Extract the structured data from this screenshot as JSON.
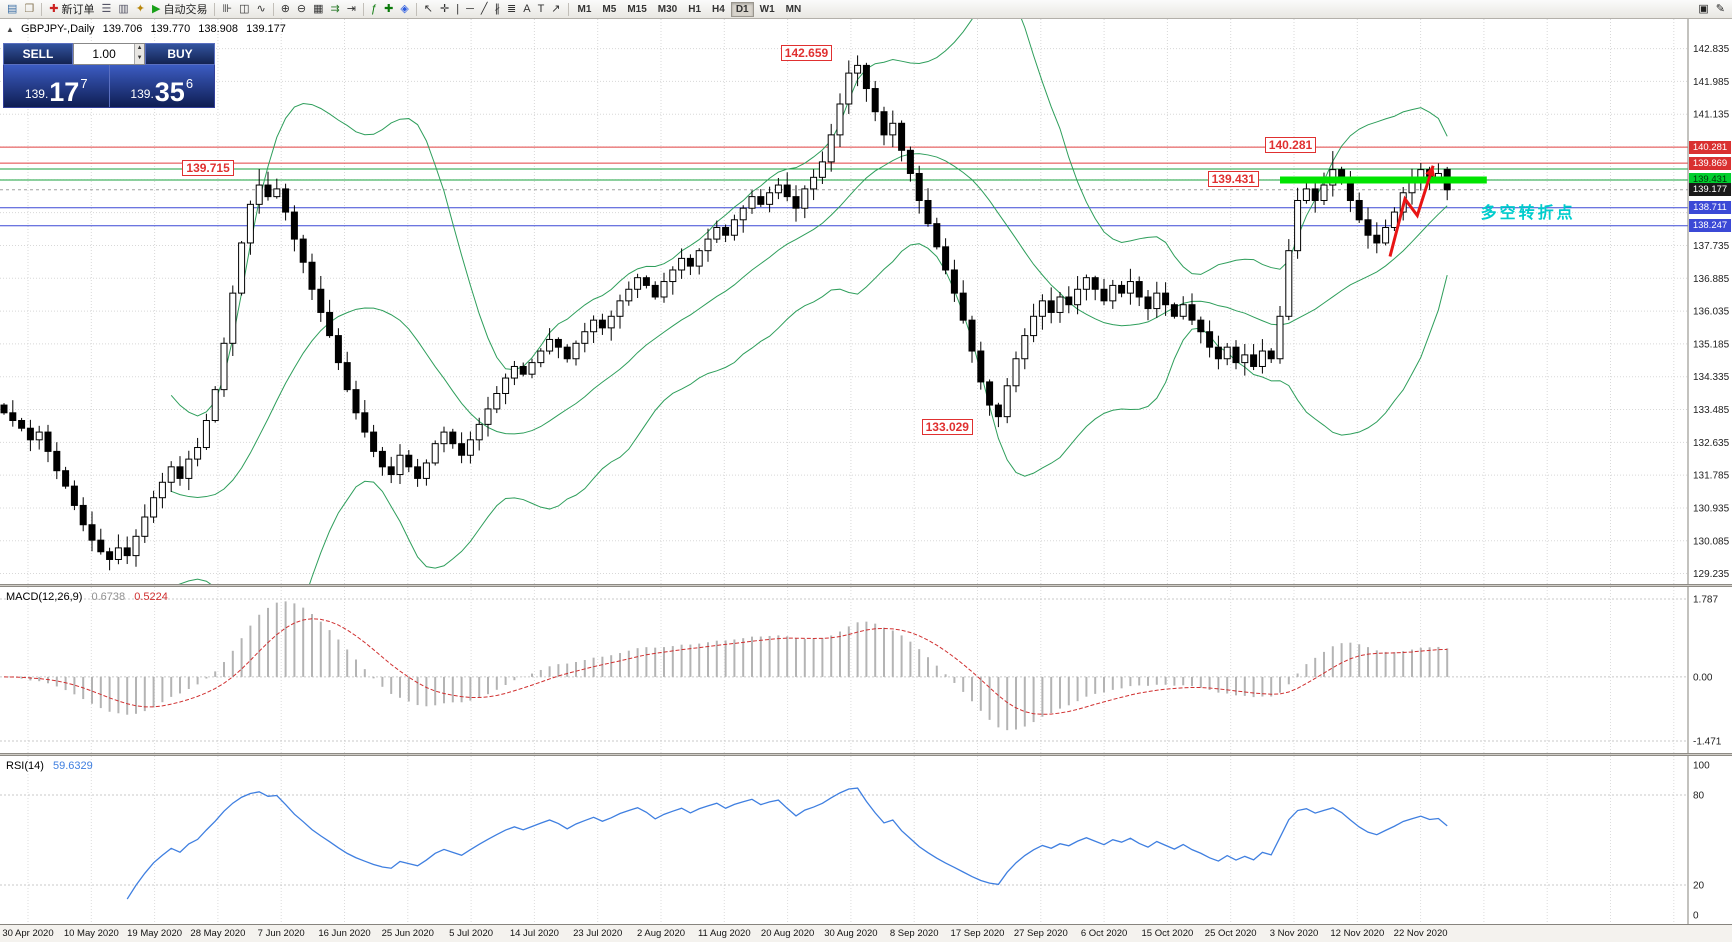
{
  "toolbar": {
    "items": [
      {
        "type": "icon",
        "name": "new-chart-icon",
        "glyph": "▤",
        "color": "#3a6ea5"
      },
      {
        "type": "icon",
        "name": "profiles-icon",
        "glyph": "❐",
        "color": "#8a7a5a"
      },
      {
        "type": "sep"
      },
      {
        "type": "button",
        "name": "new-order-button",
        "glyph": "✚",
        "color": "#cc2222",
        "label": "新订单"
      },
      {
        "type": "icon",
        "name": "market-watch-icon",
        "glyph": "☰",
        "color": "#556"
      },
      {
        "type": "icon",
        "name": "data-window-icon",
        "glyph": "▥",
        "color": "#556"
      },
      {
        "type": "icon",
        "name": "navigator-icon",
        "glyph": "✦",
        "color": "#b8860b"
      },
      {
        "type": "button",
        "name": "autotrading-button",
        "glyph": "▶",
        "color": "#18a018",
        "label": "自动交易"
      },
      {
        "type": "sep"
      },
      {
        "type": "icon",
        "name": "bar-chart-icon",
        "glyph": "⊪",
        "color": "#333"
      },
      {
        "type": "icon",
        "name": "candlestick-chart-icon",
        "glyph": "◫",
        "color": "#333"
      },
      {
        "type": "icon",
        "name": "line-chart-icon",
        "glyph": "∿",
        "color": "#333"
      },
      {
        "type": "sep"
      },
      {
        "type": "icon",
        "name": "zoom-in-icon",
        "glyph": "⊕",
        "color": "#333"
      },
      {
        "type": "icon",
        "name": "zoom-out-icon",
        "glyph": "⊖",
        "color": "#333"
      },
      {
        "type": "icon",
        "name": "tile-windows-icon",
        "glyph": "▦",
        "color": "#333"
      },
      {
        "type": "icon",
        "name": "auto-scroll-icon",
        "glyph": "⇉",
        "color": "#2a7a2a"
      },
      {
        "type": "icon",
        "name": "chart-shift-icon",
        "glyph": "⇥",
        "color": "#333"
      },
      {
        "type": "sep"
      },
      {
        "type": "icon",
        "name": "indicators-icon",
        "glyph": "ƒ",
        "color": "#0a7a0a"
      },
      {
        "type": "icon",
        "name": "add-indicator-icon",
        "glyph": "✚",
        "color": "#0a7a0a"
      },
      {
        "type": "icon",
        "name": "objects-list-icon",
        "glyph": "◈",
        "color": "#2a5adf"
      },
      {
        "type": "sep"
      },
      {
        "type": "icon",
        "name": "cursor-icon",
        "glyph": "↖",
        "color": "#333"
      },
      {
        "type": "icon",
        "name": "crosshair-icon",
        "glyph": "✛",
        "color": "#333"
      },
      {
        "type": "icon",
        "name": "vertical-line-icon",
        "glyph": "|",
        "color": "#333"
      },
      {
        "type": "icon",
        "name": "horizontal-line-icon",
        "glyph": "─",
        "color": "#333"
      },
      {
        "type": "icon",
        "name": "trendline-icon",
        "glyph": "╱",
        "color": "#333"
      },
      {
        "type": "icon",
        "name": "channel-icon",
        "glyph": "∦",
        "color": "#333"
      },
      {
        "type": "icon",
        "name": "fibonacci-icon",
        "glyph": "≣",
        "color": "#333"
      },
      {
        "type": "icon",
        "name": "text-icon",
        "glyph": "A",
        "color": "#333"
      },
      {
        "type": "icon",
        "name": "label-icon",
        "glyph": "T",
        "color": "#333"
      },
      {
        "type": "icon",
        "name": "arrows-icon",
        "glyph": "↗",
        "color": "#333"
      },
      {
        "type": "sep"
      }
    ],
    "timeframes": [
      "M1",
      "M5",
      "M15",
      "M30",
      "H1",
      "H4",
      "D1",
      "W1",
      "MN"
    ],
    "active_timeframe": "D1",
    "right_items": [
      {
        "name": "fullscreen-icon",
        "glyph": "▣"
      },
      {
        "name": "print-icon",
        "glyph": "✎"
      }
    ]
  },
  "symbol_bar": {
    "collapse_icon": "▲",
    "title": "GBPJPY-,Daily",
    "open": "139.706",
    "high": "139.770",
    "low": "138.908",
    "close": "139.177"
  },
  "trade_panel": {
    "sell_label": "SELL",
    "buy_label": "BUY",
    "volume": "1.00",
    "bid": {
      "prefix": "139.",
      "big": "17",
      "sup": "7"
    },
    "ask": {
      "prefix": "139.",
      "big": "35",
      "sup": "6"
    }
  },
  "price_axis": {
    "labels": [
      "142.835",
      "141.985",
      "141.135",
      "137.735",
      "136.885",
      "136.035",
      "135.185",
      "134.335",
      "133.485",
      "132.635",
      "131.785",
      "130.935",
      "130.085",
      "129.235"
    ],
    "badges": [
      {
        "text": "140.281",
        "bg": "#d93030",
        "fg": "#ffffff"
      },
      {
        "text": "139.869",
        "bg": "#d93030",
        "fg": "#ffffff"
      },
      {
        "text": "139.431",
        "bg": "#00cf2e",
        "fg": "#00330a"
      },
      {
        "text": "139.177",
        "bg": "#1a1a1a",
        "fg": "#ffffff"
      },
      {
        "text": "138.711",
        "bg": "#3b49d6",
        "fg": "#ffffff"
      },
      {
        "text": "138.247",
        "bg": "#3b49d6",
        "fg": "#ffffff"
      }
    ]
  },
  "chart_data": {
    "type": "candlestick",
    "symbol": "GBPJPY-",
    "timeframe": "Daily",
    "y_range": [
      129.235,
      142.835
    ],
    "grid_step": 0.85,
    "first_open": 133.6,
    "closes": [
      133.4,
      133.2,
      133.0,
      132.7,
      132.9,
      132.4,
      131.9,
      131.5,
      131.0,
      130.5,
      130.1,
      129.8,
      129.6,
      129.9,
      129.7,
      130.2,
      130.7,
      131.2,
      131.6,
      132.0,
      131.7,
      132.2,
      132.5,
      133.2,
      134.0,
      135.2,
      136.5,
      137.8,
      138.8,
      139.3,
      139.0,
      139.2,
      138.6,
      137.9,
      137.3,
      136.6,
      136.0,
      135.4,
      134.7,
      134.0,
      133.4,
      132.9,
      132.4,
      132.0,
      131.8,
      132.3,
      132.0,
      131.7,
      132.1,
      132.6,
      132.9,
      132.6,
      132.3,
      132.7,
      133.1,
      133.5,
      133.9,
      134.3,
      134.6,
      134.4,
      134.7,
      135.0,
      135.3,
      135.1,
      134.8,
      135.2,
      135.5,
      135.8,
      135.6,
      135.9,
      136.3,
      136.6,
      136.9,
      136.7,
      136.4,
      136.8,
      137.1,
      137.4,
      137.2,
      137.6,
      137.9,
      138.2,
      138.0,
      138.4,
      138.7,
      139.0,
      138.8,
      139.1,
      139.3,
      139.0,
      138.7,
      139.2,
      139.5,
      139.9,
      140.6,
      141.4,
      142.2,
      142.4,
      141.8,
      141.2,
      140.6,
      140.9,
      140.2,
      139.6,
      138.9,
      138.3,
      137.7,
      137.1,
      136.5,
      135.8,
      135.0,
      134.2,
      133.6,
      133.3,
      134.1,
      134.8,
      135.4,
      135.9,
      136.3,
      136.0,
      136.4,
      136.2,
      136.6,
      136.9,
      136.6,
      136.3,
      136.7,
      136.5,
      136.8,
      136.4,
      136.1,
      136.5,
      136.2,
      135.9,
      136.2,
      135.8,
      135.5,
      135.1,
      134.8,
      135.1,
      134.7,
      134.9,
      134.6,
      135.0,
      134.8,
      135.9,
      137.6,
      138.9,
      139.2,
      138.9,
      139.3,
      139.7,
      139.4,
      138.9,
      138.4,
      138.0,
      137.8,
      138.2,
      138.6,
      139.1,
      139.4,
      139.7,
      139.5,
      139.6,
      139.177
    ],
    "overrides": {
      "12": {
        "l": 129.32
      },
      "29": {
        "h": 139.715
      },
      "97": {
        "h": 142.659
      },
      "113": {
        "l": 133.029
      },
      "151": {
        "h": 140.18
      },
      "161": {
        "h": 139.87
      },
      "163": {
        "h": 139.86
      },
      "164": {
        "o": 139.706,
        "h": 139.77,
        "l": 138.908,
        "c": 139.177
      }
    },
    "x_labels": [
      "30 Apr 2020",
      "10 May 2020",
      "19 May 2020",
      "28 May 2020",
      "7 Jun 2020",
      "16 Jun 2020",
      "25 Jun 2020",
      "5 Jul 2020",
      "14 Jul 2020",
      "23 Jul 2020",
      "2 Aug 2020",
      "11 Aug 2020",
      "20 Aug 2020",
      "30 Aug 2020",
      "8 Sep 2020",
      "17 Sep 2020",
      "27 Sep 2020",
      "6 Oct 2020",
      "15 Oct 2020",
      "25 Oct 2020",
      "3 Nov 2020",
      "12 Nov 2020",
      "22 Nov 2020"
    ],
    "indicators": {
      "bollinger": {
        "period": 20,
        "dev": 2,
        "color": "#2e9e5b"
      },
      "macd": {
        "fast": 12,
        "slow": 26,
        "signal": 9
      },
      "rsi": {
        "period": 14
      }
    },
    "hlines": [
      {
        "price": 140.281,
        "color": "#e04040"
      },
      {
        "price": 139.869,
        "color": "#e04040"
      },
      {
        "price": 139.715,
        "color": "#18a23c"
      },
      {
        "price": 139.431,
        "color": "#18a23c"
      },
      {
        "price": 138.711,
        "color": "#3b49d6"
      },
      {
        "price": 138.247,
        "color": "#3b49d6"
      }
    ],
    "bid_line": {
      "price": 139.177,
      "color": "#a0a0a0"
    },
    "thick_line": {
      "price": 139.431,
      "i1": 145,
      "i2": 168.5,
      "color": "#00e400",
      "width": 7
    },
    "callouts": [
      {
        "text": "142.659",
        "i": 91,
        "price": 142.72
      },
      {
        "text": "139.715",
        "i": 23,
        "price": 139.74
      },
      {
        "text": "140.281",
        "i": 146,
        "price": 140.34
      },
      {
        "text": "139.431",
        "i": 139.5,
        "price": 139.46
      },
      {
        "text": "133.029",
        "i": 107,
        "price": 133.04
      }
    ],
    "arrow": {
      "color": "#e81414",
      "width": 3,
      "points": [
        [
          157.5,
          137.45
        ],
        [
          159.2,
          138.94
        ],
        [
          160.6,
          138.51
        ],
        [
          162.4,
          139.8
        ]
      ]
    },
    "note": {
      "text": "多空转折点",
      "color": "#00cccc",
      "i": 167.8,
      "price": 138.7
    }
  },
  "macd_panel": {
    "label": "MACD(12,26,9)",
    "main_value": "0.6738",
    "signal_value": "0.5224",
    "axis_labels": [
      "1.787",
      "0.00",
      "-1.471"
    ],
    "axis_values": [
      1.787,
      0,
      -1.471
    ],
    "hist_color": "#b4b4b4",
    "signal_color": "#d03030"
  },
  "rsi_panel": {
    "label": "RSI(14)",
    "value": "59.6329",
    "axis_labels": [
      "100",
      "80",
      "20",
      "0"
    ],
    "axis_values": [
      100,
      80,
      20,
      0
    ],
    "levels": [
      80,
      20
    ],
    "line_color": "#3f7fe0"
  }
}
